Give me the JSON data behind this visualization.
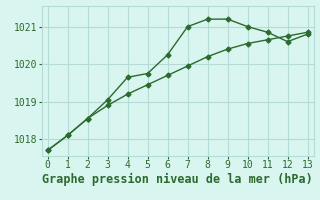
{
  "line1_x": [
    0,
    1,
    2,
    3,
    4,
    5,
    6,
    7,
    8,
    9,
    10,
    11,
    12,
    13
  ],
  "line1_y": [
    1017.7,
    1018.1,
    1018.55,
    1019.05,
    1019.65,
    1019.75,
    1020.25,
    1021.0,
    1021.2,
    1021.2,
    1021.0,
    1020.85,
    1020.6,
    1020.8
  ],
  "line2_x": [
    0,
    1,
    2,
    3,
    4,
    5,
    6,
    7,
    8,
    9,
    10,
    11,
    12,
    13
  ],
  "line2_y": [
    1017.7,
    1018.1,
    1018.55,
    1018.9,
    1019.2,
    1019.45,
    1019.7,
    1019.95,
    1020.2,
    1020.4,
    1020.55,
    1020.65,
    1020.75,
    1020.85
  ],
  "line_color": "#2d6a2d",
  "bg_color": "#d8f5f0",
  "grid_color": "#b5dbd6",
  "xlabel": "Graphe pression niveau de la mer (hPa)",
  "xlim": [
    -0.3,
    13.3
  ],
  "ylim": [
    1017.55,
    1021.55
  ],
  "yticks": [
    1018,
    1019,
    1020,
    1021
  ],
  "xticks": [
    0,
    1,
    2,
    3,
    4,
    5,
    6,
    7,
    8,
    9,
    10,
    11,
    12,
    13
  ],
  "marker": "D",
  "markersize": 2.5,
  "linewidth": 1.0,
  "xlabel_fontsize": 8.5,
  "tick_fontsize": 7
}
